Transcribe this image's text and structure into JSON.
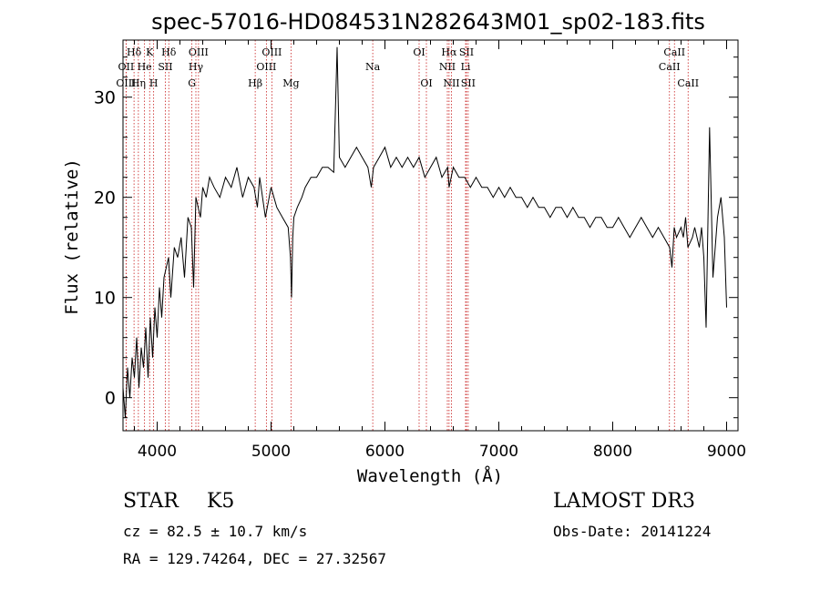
{
  "chart_data": {
    "type": "line",
    "title": "spec-57016-HD084531N282643M01_sp02-183.fits",
    "xlabel": "Wavelength (Å)",
    "ylabel": "Flux (relative)",
    "xlim": [
      3700,
      9100
    ],
    "ylim": [
      -3.3,
      35.7
    ],
    "xticks": [
      4000,
      5000,
      6000,
      7000,
      8000,
      9000
    ],
    "yticks": [
      0,
      10,
      20,
      30
    ],
    "grid": false,
    "line_color": "#000000",
    "marker_color": "#c81e1e",
    "series": [
      {
        "values_note_removed": true,
        "x": [
          3700,
          3720,
          3740,
          3760,
          3780,
          3800,
          3820,
          3840,
          3860,
          3880,
          3900,
          3920,
          3940,
          3960,
          3980,
          4000,
          4020,
          4040,
          4060,
          4080,
          4100,
          4120,
          4150,
          4180,
          4210,
          4240,
          4270,
          4300,
          4320,
          4340,
          4360,
          4380,
          4400,
          4430,
          4460,
          4500,
          4550,
          4600,
          4650,
          4700,
          4750,
          4800,
          4850,
          4880,
          4900,
          4950,
          5000,
          5050,
          5100,
          5150,
          5170,
          5180,
          5190,
          5200,
          5230,
          5270,
          5300,
          5350,
          5400,
          5450,
          5500,
          5550,
          5580,
          5600,
          5650,
          5700,
          5750,
          5800,
          5850,
          5880,
          5900,
          5950,
          6000,
          6050,
          6100,
          6150,
          6200,
          6250,
          6300,
          6350,
          6400,
          6450,
          6500,
          6550,
          6563,
          6600,
          6650,
          6700,
          6750,
          6800,
          6850,
          6900,
          6950,
          7000,
          7050,
          7100,
          7150,
          7200,
          7250,
          7300,
          7350,
          7400,
          7450,
          7500,
          7550,
          7600,
          7650,
          7700,
          7750,
          7800,
          7850,
          7900,
          7950,
          8000,
          8050,
          8100,
          8150,
          8200,
          8250,
          8300,
          8350,
          8400,
          8450,
          8500,
          8520,
          8540,
          8560,
          8600,
          8620,
          8640,
          8660,
          8700,
          8720,
          8740,
          8760,
          8780,
          8800,
          8820,
          8850,
          8880,
          8900,
          8920,
          8950,
          8980,
          9000
        ],
        "y": [
          1,
          -2,
          3,
          0,
          4,
          2,
          6,
          1,
          5,
          3,
          7,
          2,
          8,
          4,
          9,
          6,
          11,
          8,
          12,
          13,
          14,
          10,
          15,
          14,
          16,
          12,
          18,
          17,
          11,
          20,
          19,
          18,
          21,
          20,
          22,
          21,
          20,
          22,
          21,
          23,
          20,
          22,
          21,
          19,
          22,
          18,
          21,
          19,
          18,
          17,
          14,
          10,
          16,
          18,
          19,
          20,
          21,
          22,
          22,
          23,
          23,
          22.5,
          35,
          24,
          23,
          24,
          25,
          24,
          23,
          21,
          23,
          24,
          25,
          23,
          24,
          23,
          24,
          23,
          24,
          22,
          23,
          24,
          22,
          23,
          21,
          23,
          22,
          22,
          21,
          22,
          21,
          21,
          20,
          21,
          20,
          21,
          20,
          20,
          19,
          20,
          19,
          19,
          18,
          19,
          19,
          18,
          19,
          18,
          18,
          17,
          18,
          18,
          17,
          17,
          18,
          17,
          16,
          17,
          18,
          17,
          16,
          17,
          16,
          15,
          13,
          17,
          16,
          17,
          16,
          18,
          15,
          16,
          17,
          16,
          15,
          17,
          14,
          7,
          27,
          12,
          15,
          18,
          20,
          16,
          9
        ]
      }
    ],
    "line_markers": [
      {
        "label": "Hδ",
        "x": 3797,
        "row": 0
      },
      {
        "label": "OII",
        "x": 3727,
        "row": 1
      },
      {
        "label": "OIII",
        "x": 3727,
        "row": 2
      },
      {
        "label": "He",
        "x": 3889,
        "row": 1
      },
      {
        "label": "K",
        "x": 3934,
        "row": 0
      },
      {
        "label": "Hη",
        "x": 3835,
        "row": 2
      },
      {
        "label": "H",
        "x": 3969,
        "row": 2
      },
      {
        "label": "SII",
        "x": 4072,
        "row": 1
      },
      {
        "label": "Hδ",
        "x": 4102,
        "row": 0
      },
      {
        "label": "OIII",
        "x": 4363,
        "row": 0
      },
      {
        "label": "Hγ",
        "x": 4340,
        "row": 1
      },
      {
        "label": "G",
        "x": 4305,
        "row": 2
      },
      {
        "label": "Hβ",
        "x": 4861,
        "row": 2
      },
      {
        "label": "OIII",
        "x": 5007,
        "row": 0
      },
      {
        "label": "OIII",
        "x": 4959,
        "row": 1
      },
      {
        "label": "Mg",
        "x": 5175,
        "row": 2
      },
      {
        "label": "Na",
        "x": 5893,
        "row": 1
      },
      {
        "label": "OI",
        "x": 6300,
        "row": 0
      },
      {
        "label": "OI",
        "x": 6364,
        "row": 2
      },
      {
        "label": "Hα",
        "x": 6563,
        "row": 0
      },
      {
        "label": "SII",
        "x": 6716,
        "row": 0
      },
      {
        "label": "NII",
        "x": 6548,
        "row": 1
      },
      {
        "label": "Li",
        "x": 6708,
        "row": 1
      },
      {
        "label": "NII",
        "x": 6584,
        "row": 2
      },
      {
        "label": "SII",
        "x": 6731,
        "row": 2
      },
      {
        "label": "CaII",
        "x": 8542,
        "row": 0
      },
      {
        "label": "CaII",
        "x": 8498,
        "row": 1
      },
      {
        "label": "CaII",
        "x": 8662,
        "row": 2
      }
    ]
  },
  "info": {
    "object_type": "STAR",
    "subclass": "K5",
    "survey": "LAMOST DR3",
    "redshift": "cz = 82.5 ± 10.7 km/s",
    "obs_date": "Obs-Date: 20141224",
    "coords": "RA = 129.74264, DEC =  27.32567"
  }
}
